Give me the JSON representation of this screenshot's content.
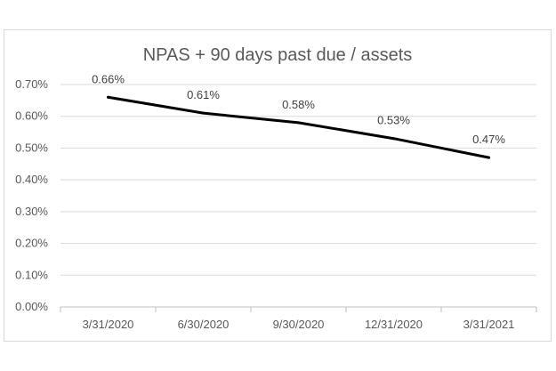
{
  "chart_data": {
    "type": "line",
    "title": "NPAS + 90 days past due / assets",
    "xlabel": "",
    "ylabel": "",
    "categories": [
      "3/31/2020",
      "6/30/2020",
      "9/30/2020",
      "12/31/2020",
      "3/31/2021"
    ],
    "series": [
      {
        "values": [
          0.66,
          0.61,
          0.58,
          0.53,
          0.47
        ],
        "data_labels": [
          "0.66%",
          "0.61%",
          "0.58%",
          "0.53%",
          "0.47%"
        ],
        "color": "#000000"
      }
    ],
    "ylim": [
      0,
      0.7
    ],
    "yticks": [
      0,
      0.1,
      0.2,
      0.3,
      0.4,
      0.5,
      0.6,
      0.7
    ],
    "ytick_labels": [
      "0.00%",
      "0.10%",
      "0.20%",
      "0.30%",
      "0.40%",
      "0.50%",
      "0.60%",
      "0.70%"
    ],
    "grid": true,
    "legend": "none",
    "colors": {
      "grid": "#d9d9d9",
      "axis": "#bfbfbf",
      "line": "#000000",
      "text": "#595959"
    }
  }
}
